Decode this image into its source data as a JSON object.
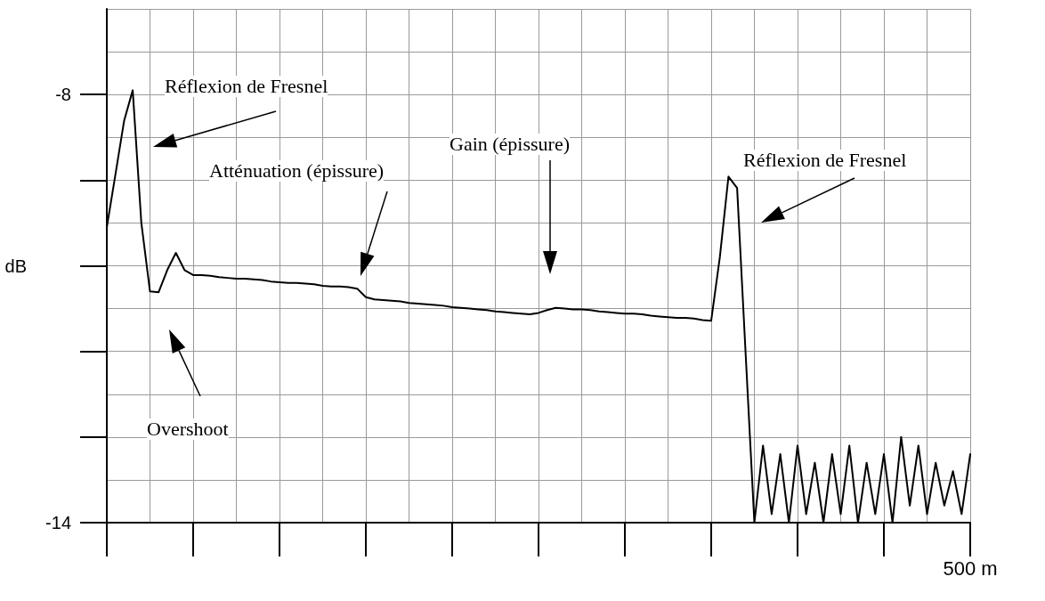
{
  "chart_data": {
    "type": "line",
    "ylabel": "dB",
    "categories": [
      null,
      null,
      null,
      null,
      null,
      null,
      null,
      null,
      null,
      null,
      null,
      null,
      null,
      null,
      null,
      null,
      null,
      null,
      null,
      null,
      null,
      null,
      null,
      null,
      null,
      null,
      null,
      null,
      null,
      null,
      null,
      null,
      null,
      null,
      null,
      null,
      null,
      null,
      null,
      null,
      null,
      null,
      null,
      null,
      null,
      null,
      null,
      null,
      null,
      null,
      null,
      null,
      null,
      null,
      null,
      null,
      null,
      null,
      null,
      null,
      null,
      null,
      null,
      null,
      null,
      null,
      null,
      null,
      null,
      null,
      null,
      null,
      null,
      null,
      null,
      null,
      null,
      null,
      null,
      null,
      null,
      null,
      null,
      null,
      null,
      null,
      null,
      null,
      null,
      null,
      null,
      null,
      null,
      null,
      null,
      null,
      null,
      null,
      null,
      null,
      "500 m"
    ],
    "ylim": [
      -14,
      -6.8
    ],
    "yticks": [
      {
        "value": -14,
        "label": "-14"
      },
      {
        "value": -12.8,
        "label": null
      },
      {
        "value": -11.6,
        "label": null
      },
      {
        "value": -10.4,
        "label": null
      },
      {
        "value": -9.2,
        "label": null
      },
      {
        "value": -8,
        "label": "-8"
      }
    ],
    "grid": true,
    "marker": "none",
    "line_style": "solid",
    "series": [
      {
        "color": "#000000",
        "values": [
          -9.86,
          -9.12,
          -8.37,
          -7.94,
          -9.8,
          -10.76,
          -10.77,
          -10.46,
          -10.22,
          -10.46,
          -10.53,
          -10.53,
          -10.54,
          -10.56,
          -10.57,
          -10.58,
          -10.58,
          -10.59,
          -10.6,
          -10.62,
          -10.63,
          -10.64,
          -10.64,
          -10.65,
          -10.66,
          -10.68,
          -10.69,
          -10.69,
          -10.7,
          -10.72,
          -10.84,
          -10.87,
          -10.88,
          -10.89,
          -10.9,
          -10.92,
          -10.93,
          -10.94,
          -10.95,
          -10.96,
          -10.98,
          -10.99,
          -11.0,
          -11.01,
          -11.02,
          -11.04,
          -11.05,
          -11.06,
          -11.07,
          -11.08,
          -11.06,
          -11.02,
          -10.99,
          -11.0,
          -11.01,
          -11.01,
          -11.02,
          -11.04,
          -11.05,
          -11.06,
          -11.07,
          -11.07,
          -11.08,
          -11.1,
          -11.11,
          -11.12,
          -11.13,
          -11.13,
          -11.14,
          -11.16,
          -11.17,
          -10.28,
          -9.15,
          -9.31,
          -11.66,
          -14,
          -12.92,
          -13.88,
          -13.04,
          -14,
          -12.92,
          -13.88,
          -13.16,
          -14,
          -13.04,
          -13.88,
          -12.92,
          -14,
          -13.16,
          -13.88,
          -13.04,
          -14,
          -12.8,
          -13.76,
          -12.92,
          -13.88,
          -13.16,
          -13.76,
          -13.28,
          -13.88,
          -13.04
        ]
      }
    ],
    "annotations": [
      "Réflexion de Fresnel",
      "Atténuation (épissure)",
      "Gain (épissure)",
      "Réflexion de Fresnel",
      "Overshoot"
    ]
  }
}
